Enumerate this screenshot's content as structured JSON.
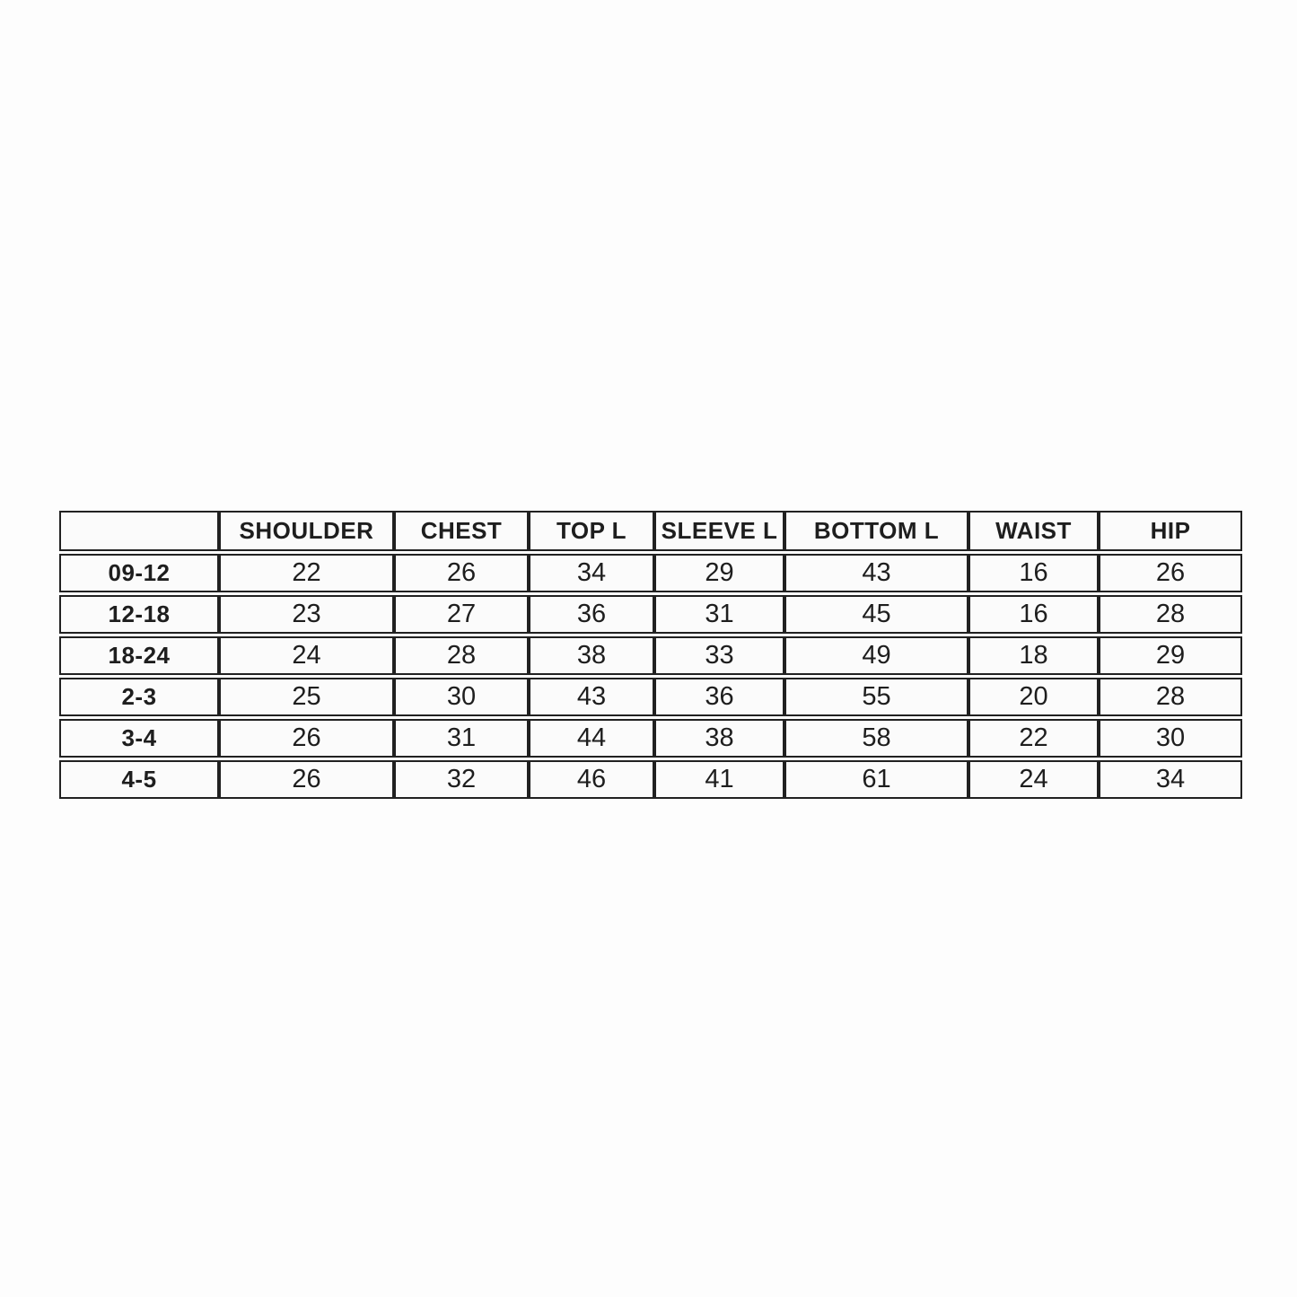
{
  "size_chart": {
    "columns": [
      "",
      "SHOULDER",
      "CHEST",
      "TOP L",
      "SLEEVE L",
      "BOTTOM L",
      "WAIST",
      "HIP"
    ],
    "rows": [
      {
        "label": "09-12",
        "values": [
          "22",
          "26",
          "34",
          "29",
          "43",
          "16",
          "26"
        ]
      },
      {
        "label": "12-18",
        "values": [
          "23",
          "27",
          "36",
          "31",
          "45",
          "16",
          "28"
        ]
      },
      {
        "label": "18-24",
        "values": [
          "24",
          "28",
          "38",
          "33",
          "49",
          "18",
          "29"
        ]
      },
      {
        "label": "2-3",
        "values": [
          "25",
          "30",
          "43",
          "36",
          "55",
          "20",
          "28"
        ]
      },
      {
        "label": "3-4",
        "values": [
          "26",
          "31",
          "44",
          "38",
          "58",
          "22",
          "30"
        ]
      },
      {
        "label": "4-5",
        "values": [
          "26",
          "32",
          "46",
          "41",
          "61",
          "24",
          "34"
        ]
      }
    ],
    "border_color": "#1f1f1f",
    "text_color": "#1c1c1c",
    "background_color": "#fdfdfd"
  }
}
